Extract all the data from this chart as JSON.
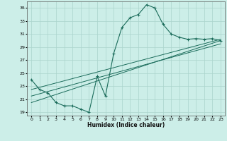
{
  "xlabel": "Humidex (Indice chaleur)",
  "bg_color": "#cceee8",
  "grid_color": "#aad4cc",
  "line_color": "#1a6b5a",
  "xlim": [
    -0.5,
    23.5
  ],
  "ylim": [
    18.5,
    36.0
  ],
  "yticks": [
    19,
    21,
    23,
    25,
    27,
    29,
    31,
    33,
    35
  ],
  "xticks": [
    0,
    1,
    2,
    3,
    4,
    5,
    6,
    7,
    8,
    9,
    10,
    11,
    12,
    13,
    14,
    15,
    16,
    17,
    18,
    19,
    20,
    21,
    22,
    23
  ],
  "main_x": [
    0,
    1,
    2,
    3,
    4,
    5,
    6,
    7,
    8,
    9,
    10,
    11,
    12,
    13,
    14,
    15,
    16,
    17,
    18,
    19,
    20,
    21,
    22,
    23
  ],
  "main_y": [
    24.0,
    22.5,
    22.0,
    20.5,
    20.0,
    20.0,
    19.5,
    19.0,
    24.5,
    21.5,
    28.0,
    32.0,
    33.5,
    34.0,
    35.5,
    35.0,
    32.5,
    31.0,
    30.5,
    30.2,
    30.3,
    30.2,
    30.3,
    30.0
  ],
  "line1_x": [
    0,
    23
  ],
  "line1_y": [
    22.5,
    30.2
  ],
  "line2_x": [
    0,
    23
  ],
  "line2_y": [
    21.5,
    29.5
  ],
  "line3_x": [
    0,
    23
  ],
  "line3_y": [
    20.5,
    30.0
  ]
}
